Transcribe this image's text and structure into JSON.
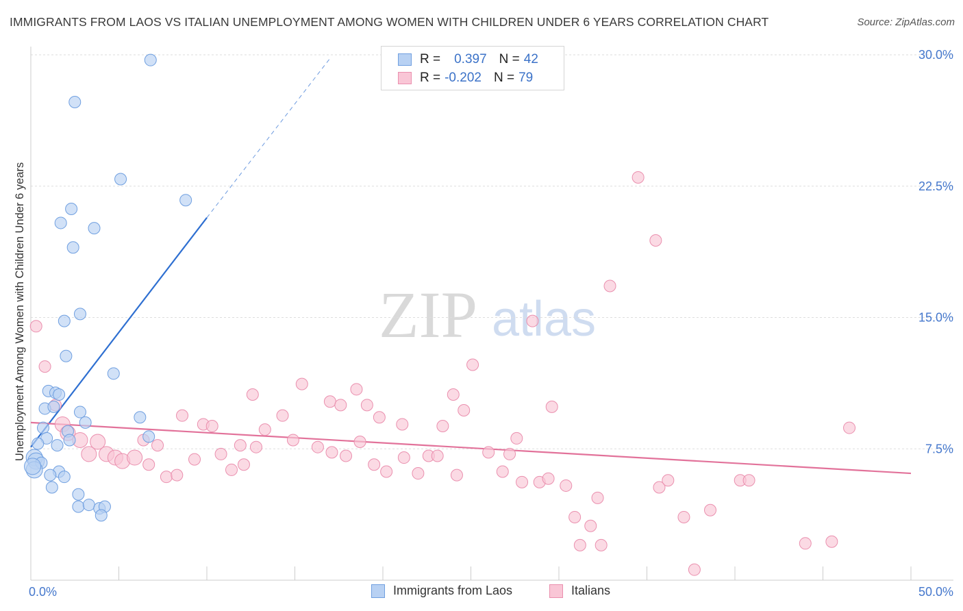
{
  "title": "IMMIGRANTS FROM LAOS VS ITALIAN UNEMPLOYMENT AMONG WOMEN WITH CHILDREN UNDER 6 YEARS CORRELATION CHART",
  "source": "Source: ZipAtlas.com",
  "watermark": {
    "zip": "ZIP",
    "atlas": "atlas"
  },
  "legend": {
    "rows": [
      {
        "r_label": "R =",
        "r_value": "0.397",
        "n_label": "N =",
        "n_value": "42"
      },
      {
        "r_label": "R =",
        "r_value": "-0.202",
        "n_label": "N =",
        "n_value": "79"
      }
    ]
  },
  "bottom_legend": {
    "laos": "Immigrants from Laos",
    "italians": "Italians"
  },
  "colors": {
    "laos_fill": "#b8d1f3",
    "laos_stroke": "#6f9fe0",
    "laos_line": "#2e6fd1",
    "ital_fill": "#f9c6d6",
    "ital_stroke": "#ea8fae",
    "ital_line": "#e2729a",
    "tick_text": "#4477cc",
    "grid": "#dddddd"
  },
  "chart_data": {
    "type": "scatter",
    "title": "IMMIGRANTS FROM LAOS VS ITALIAN UNEMPLOYMENT AMONG WOMEN WITH CHILDREN UNDER 6 YEARS CORRELATION CHART",
    "xlabel": "",
    "ylabel": "Unemployment Among Women with Children Under 6 years",
    "xlim": [
      0,
      50
    ],
    "ylim": [
      0,
      30
    ],
    "x_tick_labels": [
      "0.0%",
      "50.0%"
    ],
    "y_tick_labels": [
      {
        "value": 7.5,
        "label": "7.5%"
      },
      {
        "value": 15.0,
        "label": "15.0%"
      },
      {
        "value": 22.5,
        "label": "22.5%"
      },
      {
        "value": 30.0,
        "label": "30.0%"
      }
    ],
    "grid": true,
    "legend_position": "top-center",
    "series": [
      {
        "name": "Immigrants from Laos",
        "r": 0.397,
        "n": 42,
        "trend": {
          "x": [
            0.0,
            10.0
          ],
          "y": [
            7.6,
            20.7
          ],
          "dashed_to": {
            "x": 17.0,
            "y": 29.8
          }
        },
        "points": [
          [
            6.8,
            29.7
          ],
          [
            2.5,
            27.3
          ],
          [
            5.1,
            22.9
          ],
          [
            8.8,
            21.7
          ],
          [
            2.3,
            21.2
          ],
          [
            1.7,
            20.4
          ],
          [
            3.6,
            20.1
          ],
          [
            2.4,
            19.0
          ],
          [
            2.8,
            15.2
          ],
          [
            1.9,
            14.8
          ],
          [
            2.0,
            12.8
          ],
          [
            4.7,
            11.8
          ],
          [
            1.0,
            10.8
          ],
          [
            1.4,
            10.7
          ],
          [
            1.6,
            10.6
          ],
          [
            0.8,
            9.8
          ],
          [
            1.3,
            9.9
          ],
          [
            2.8,
            9.6
          ],
          [
            6.2,
            9.3
          ],
          [
            3.1,
            9.0
          ],
          [
            0.7,
            8.7
          ],
          [
            2.1,
            8.5
          ],
          [
            0.9,
            8.1
          ],
          [
            2.2,
            8.0
          ],
          [
            6.7,
            8.2
          ],
          [
            0.4,
            7.8
          ],
          [
            1.5,
            7.7
          ],
          [
            0.2,
            7.0
          ],
          [
            0.3,
            6.8
          ],
          [
            0.6,
            6.7
          ],
          [
            0.2,
            6.3
          ],
          [
            1.6,
            6.2
          ],
          [
            1.1,
            6.0
          ],
          [
            1.9,
            5.9
          ],
          [
            1.2,
            5.3
          ],
          [
            2.7,
            4.9
          ],
          [
            2.7,
            4.2
          ],
          [
            3.3,
            4.3
          ],
          [
            3.9,
            4.1
          ],
          [
            4.2,
            4.2
          ],
          [
            4.0,
            3.7
          ],
          [
            0.1,
            6.5
          ]
        ]
      },
      {
        "name": "Italians",
        "r": -0.202,
        "n": 79,
        "trend": {
          "x": [
            0.0,
            50.0
          ],
          "y": [
            9.0,
            6.1
          ]
        },
        "points": [
          [
            0.3,
            14.5
          ],
          [
            0.8,
            12.2
          ],
          [
            34.5,
            23.0
          ],
          [
            35.5,
            19.4
          ],
          [
            32.9,
            16.8
          ],
          [
            28.5,
            14.8
          ],
          [
            25.1,
            12.3
          ],
          [
            15.4,
            11.2
          ],
          [
            12.6,
            10.6
          ],
          [
            17.0,
            10.2
          ],
          [
            17.6,
            10.0
          ],
          [
            18.5,
            10.9
          ],
          [
            19.1,
            10.0
          ],
          [
            24.0,
            10.6
          ],
          [
            24.6,
            9.7
          ],
          [
            29.6,
            9.9
          ],
          [
            1.4,
            10.0
          ],
          [
            8.6,
            9.4
          ],
          [
            14.3,
            9.4
          ],
          [
            19.8,
            9.3
          ],
          [
            9.8,
            8.9
          ],
          [
            10.3,
            8.8
          ],
          [
            21.1,
            8.9
          ],
          [
            23.4,
            8.8
          ],
          [
            46.5,
            8.7
          ],
          [
            13.3,
            8.6
          ],
          [
            1.8,
            8.9
          ],
          [
            2.1,
            8.4
          ],
          [
            2.8,
            8.0
          ],
          [
            3.8,
            7.9
          ],
          [
            6.4,
            8.0
          ],
          [
            7.2,
            7.7
          ],
          [
            14.9,
            8.0
          ],
          [
            18.7,
            7.9
          ],
          [
            27.6,
            8.1
          ],
          [
            11.9,
            7.7
          ],
          [
            12.8,
            7.6
          ],
          [
            16.3,
            7.6
          ],
          [
            3.3,
            7.2
          ],
          [
            4.3,
            7.2
          ],
          [
            4.8,
            7.0
          ],
          [
            5.2,
            6.8
          ],
          [
            5.9,
            7.0
          ],
          [
            6.7,
            6.6
          ],
          [
            9.3,
            6.9
          ],
          [
            10.8,
            7.2
          ],
          [
            11.4,
            6.3
          ],
          [
            12.1,
            6.6
          ],
          [
            17.1,
            7.3
          ],
          [
            17.9,
            7.1
          ],
          [
            19.5,
            6.6
          ],
          [
            20.2,
            6.2
          ],
          [
            21.2,
            7.0
          ],
          [
            22.0,
            6.1
          ],
          [
            22.6,
            7.1
          ],
          [
            23.1,
            7.1
          ],
          [
            24.2,
            6.0
          ],
          [
            26.0,
            7.3
          ],
          [
            26.8,
            6.2
          ],
          [
            27.2,
            7.2
          ],
          [
            7.7,
            5.9
          ],
          [
            8.3,
            6.0
          ],
          [
            27.9,
            5.6
          ],
          [
            28.9,
            5.6
          ],
          [
            29.4,
            5.8
          ],
          [
            30.4,
            5.4
          ],
          [
            35.7,
            5.3
          ],
          [
            36.2,
            5.7
          ],
          [
            40.3,
            5.7
          ],
          [
            40.8,
            5.7
          ],
          [
            32.2,
            4.7
          ],
          [
            30.9,
            3.6
          ],
          [
            37.1,
            3.6
          ],
          [
            38.6,
            4.0
          ],
          [
            31.8,
            3.1
          ],
          [
            31.2,
            2.0
          ],
          [
            32.4,
            2.0
          ],
          [
            44.0,
            2.1
          ],
          [
            45.5,
            2.2
          ],
          [
            37.7,
            0.6
          ]
        ]
      }
    ]
  }
}
